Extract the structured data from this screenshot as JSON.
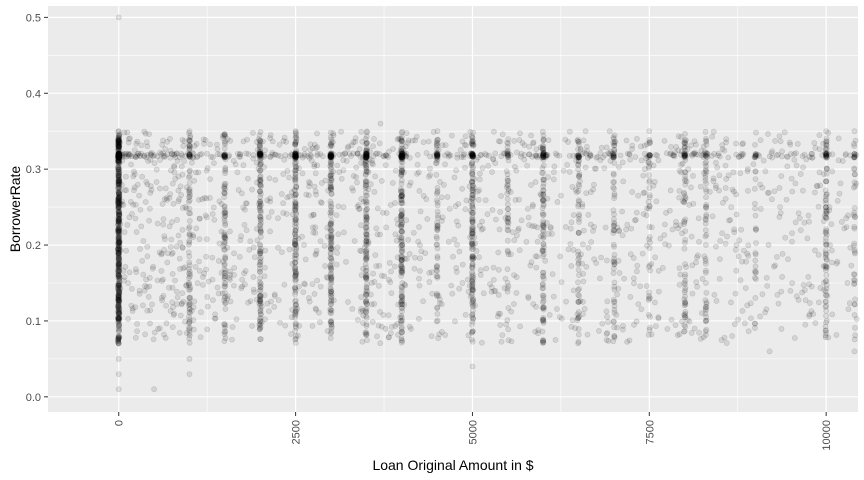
{
  "chart_data": {
    "type": "scatter",
    "title": "",
    "xlabel": "Loan Original Amount in $",
    "ylabel": "BorrowerRate",
    "xlim": [
      -1000,
      10450
    ],
    "ylim": [
      -0.02,
      0.515
    ],
    "x_ticks": [
      0,
      2500,
      5000,
      7500,
      10000
    ],
    "x_tick_labels": [
      "0",
      "2500",
      "5000",
      "7500",
      "10000"
    ],
    "y_ticks": [
      0.0,
      0.1,
      0.2,
      0.3,
      0.4,
      0.5
    ],
    "y_tick_labels": [
      "0.0",
      "0.1",
      "0.2",
      "0.3",
      "0.4",
      "0.5"
    ],
    "grid": true,
    "background": "#ebebeb",
    "grid_color": "#ffffff",
    "point_color": "#000000",
    "point_alpha": 0.1,
    "description": "Dense scatter of thousands of semi-transparent points; concentration at x=0, vertical stripes at common loan amounts (1000, 1500, 2000, 2500, 3000, 3500, 4000, 5000, 6000, 6500, 7000, 8000, 9000, 10000), and a horizontal band near 0.32; rates range roughly 0.04–0.36 with outliers at 0.01 and 0.5.",
    "points_sample": [
      [
        0,
        0.5
      ],
      [
        0,
        0.35
      ],
      [
        0,
        0.34
      ],
      [
        0,
        0.32
      ],
      [
        0,
        0.31
      ],
      [
        0,
        0.3
      ],
      [
        0,
        0.28
      ],
      [
        0,
        0.26
      ],
      [
        0,
        0.25
      ],
      [
        0,
        0.24
      ],
      [
        0,
        0.23
      ],
      [
        0,
        0.22
      ],
      [
        0,
        0.21
      ],
      [
        0,
        0.2
      ],
      [
        0,
        0.19
      ],
      [
        0,
        0.18
      ],
      [
        0,
        0.17
      ],
      [
        0,
        0.16
      ],
      [
        0,
        0.15
      ],
      [
        0,
        0.14
      ],
      [
        0,
        0.13
      ],
      [
        0,
        0.12
      ],
      [
        0,
        0.11
      ],
      [
        0,
        0.1
      ],
      [
        0,
        0.09
      ],
      [
        0,
        0.08
      ],
      [
        0,
        0.07
      ],
      [
        0,
        0.05
      ],
      [
        0,
        0.03
      ],
      [
        0,
        0.01
      ],
      [
        500,
        0.01
      ],
      [
        1000,
        0.03
      ],
      [
        1000,
        0.05
      ],
      [
        2500,
        0.35
      ],
      [
        5000,
        0.04
      ],
      [
        3700,
        0.36
      ],
      [
        10000,
        0.35
      ],
      [
        10400,
        0.35
      ],
      [
        10400,
        0.06
      ],
      [
        9200,
        0.06
      ],
      [
        6600,
        0.35
      ],
      [
        7000,
        0.34
      ],
      [
        7500,
        0.35
      ],
      [
        8000,
        0.33
      ],
      [
        8300,
        0.34
      ],
      [
        9000,
        0.32
      ],
      [
        9500,
        0.32
      ],
      [
        10000,
        0.32
      ],
      [
        10400,
        0.32
      ],
      [
        10300,
        0.15
      ],
      [
        10000,
        0.12
      ],
      [
        10000,
        0.2
      ],
      [
        10000,
        0.25
      ],
      [
        8300,
        0.1
      ],
      [
        8300,
        0.15
      ],
      [
        8300,
        0.2
      ],
      [
        8300,
        0.25
      ],
      [
        8300,
        0.3
      ]
    ]
  }
}
